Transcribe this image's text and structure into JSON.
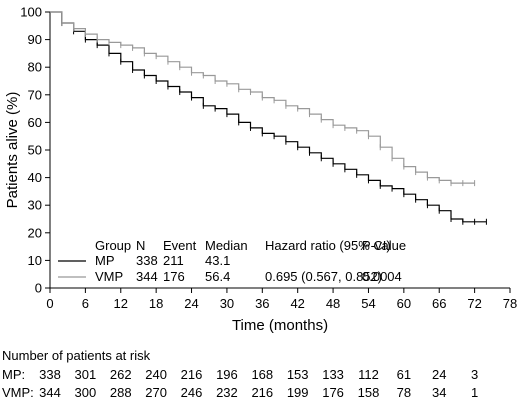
{
  "chart_data": {
    "type": "line",
    "xlabel": "Time (months)",
    "ylabel": "Patients alive (%)",
    "xlim": [
      0,
      78
    ],
    "ylim": [
      0,
      100
    ],
    "x_ticks": [
      0,
      6,
      12,
      18,
      24,
      30,
      36,
      42,
      48,
      54,
      60,
      66,
      72,
      78
    ],
    "y_ticks": [
      0,
      10,
      20,
      30,
      40,
      50,
      60,
      70,
      80,
      90,
      100
    ],
    "grid": false,
    "legend_position": "bottom-left",
    "colors": {
      "MP": "#000000",
      "VMP": "#999999"
    },
    "series": [
      {
        "name": "MP",
        "x": [
          0,
          2,
          4,
          6,
          8,
          10,
          12,
          14,
          16,
          18,
          20,
          22,
          24,
          26,
          28,
          30,
          32,
          34,
          36,
          38,
          40,
          42,
          44,
          46,
          48,
          50,
          52,
          54,
          56,
          58,
          60,
          62,
          64,
          66,
          68,
          70,
          72,
          74
        ],
        "y": [
          100,
          96,
          93,
          90,
          88,
          85,
          82,
          79,
          77,
          75,
          73,
          71,
          69,
          66,
          65,
          63,
          60,
          58,
          56,
          55,
          53,
          51,
          49,
          47,
          45,
          43,
          41,
          39,
          37,
          36,
          34,
          32,
          30,
          28,
          25,
          24,
          24,
          24
        ]
      },
      {
        "name": "VMP",
        "x": [
          0,
          2,
          4,
          6,
          8,
          10,
          12,
          14,
          16,
          18,
          20,
          22,
          24,
          26,
          28,
          30,
          32,
          34,
          36,
          38,
          40,
          42,
          44,
          46,
          48,
          50,
          52,
          54,
          56,
          58,
          60,
          62,
          64,
          66,
          68,
          70,
          72
        ],
        "y": [
          100,
          96,
          94,
          92,
          90,
          89,
          88,
          87,
          85,
          84,
          82,
          80,
          78,
          77,
          75,
          74,
          72,
          71,
          69,
          68,
          66,
          65,
          63,
          61,
          59,
          58,
          57,
          55,
          51,
          47,
          44,
          42,
          40,
          39,
          38,
          38,
          38
        ]
      }
    ],
    "legend_table": {
      "headers": [
        "Group",
        "N",
        "Event",
        "Median",
        "Hazard ratio (95% CI)",
        "P-value"
      ],
      "rows": [
        [
          "MP",
          "338",
          "211",
          "43.1",
          "",
          ""
        ],
        [
          "VMP",
          "344",
          "176",
          "56.4",
          "0.695 (0.567, 0.852)",
          "0.0004"
        ]
      ]
    },
    "at_risk": {
      "title": "Number of patients at risk",
      "rows": [
        {
          "label": "MP:",
          "values": [
            "338",
            "301",
            "262",
            "240",
            "216",
            "196",
            "168",
            "153",
            "133",
            "112",
            "61",
            "24",
            "3"
          ]
        },
        {
          "label": "VMP:",
          "values": [
            "344",
            "300",
            "288",
            "270",
            "246",
            "232",
            "216",
            "199",
            "176",
            "158",
            "78",
            "34",
            "1"
          ]
        }
      ]
    }
  }
}
